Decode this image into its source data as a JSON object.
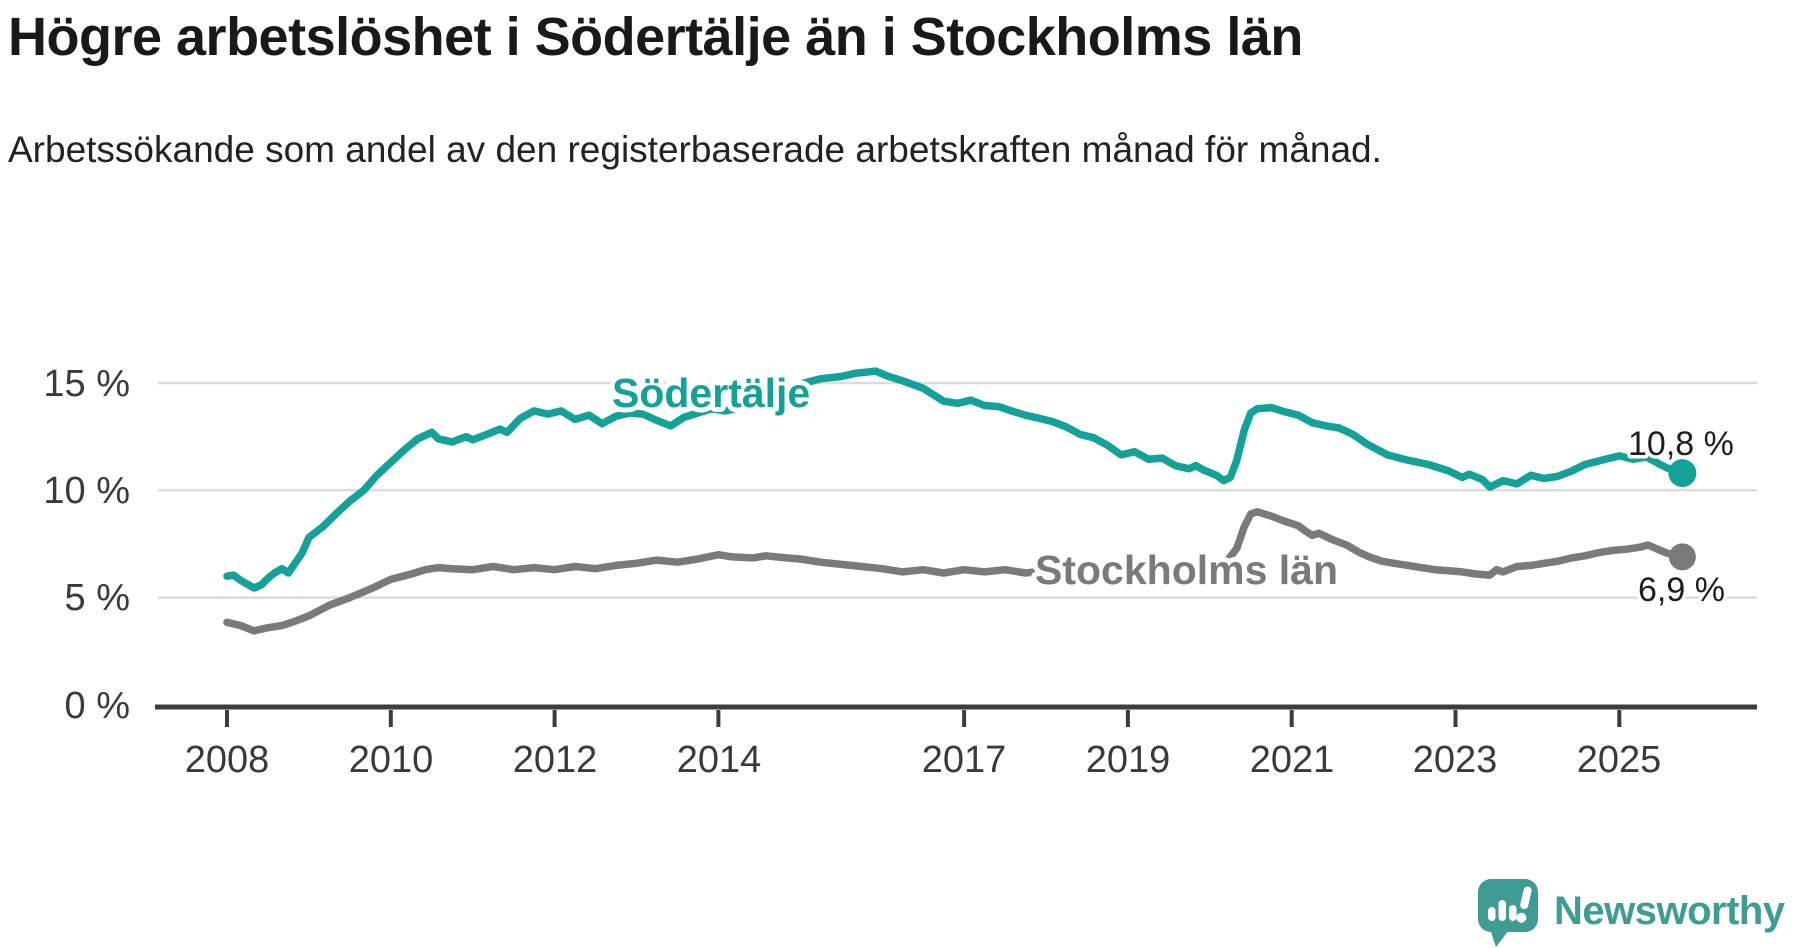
{
  "title": "Högre arbetslöshet i Södertälje än i Stockholms län",
  "subtitle": "Arbetssökande som andel av den registerbaserade arbetskraften månad för månad.",
  "branding": {
    "logo_text": "Newsworthy",
    "logo_color": "#3E9C94"
  },
  "colors": {
    "soedertaelje": "#14A197",
    "stockholms_laen": "#7A7A7A",
    "gridline": "#DCDCDC",
    "axis": "#3C3C3C",
    "text": "#3A3A3A"
  },
  "chart_data": {
    "type": "line",
    "title": "Högre arbetslöshet i Södertälje än i Stockholms län",
    "subtitle": "Arbetssökande som andel av den registerbaserade arbetskraften månad för månad.",
    "unit": "percent of registered labour force, monthly",
    "grid": "horizontal",
    "legend": "inline-labels",
    "x_axis": {
      "range": [
        2007.6,
        2026.0
      ],
      "ticks": [
        2008,
        2010,
        2012,
        2014,
        2017,
        2019,
        2021,
        2023,
        2025
      ],
      "tick_labels": [
        "2008",
        "2010",
        "2012",
        "2014",
        "2017",
        "2019",
        "2021",
        "2023",
        "2025"
      ]
    },
    "y_axis": {
      "range": [
        0,
        16.5
      ],
      "ticks": [
        15,
        10,
        5,
        0
      ],
      "labels": [
        "15 %",
        "10 %",
        "5 %",
        "0 %"
      ]
    },
    "series": [
      {
        "name": "Södertälje",
        "color": "#14A197",
        "end_value": 10.8,
        "end_label": "10,8 %",
        "points": [
          [
            2008.0,
            6.0
          ],
          [
            2008.08,
            6.05
          ],
          [
            2008.17,
            5.8
          ],
          [
            2008.33,
            5.45
          ],
          [
            2008.42,
            5.6
          ],
          [
            2008.5,
            5.9
          ],
          [
            2008.58,
            6.15
          ],
          [
            2008.67,
            6.35
          ],
          [
            2008.75,
            6.15
          ],
          [
            2008.83,
            6.6
          ],
          [
            2008.92,
            7.1
          ],
          [
            2009.0,
            7.8
          ],
          [
            2009.17,
            8.3
          ],
          [
            2009.33,
            8.9
          ],
          [
            2009.5,
            9.5
          ],
          [
            2009.67,
            10.0
          ],
          [
            2009.83,
            10.7
          ],
          [
            2010.0,
            11.3
          ],
          [
            2010.17,
            11.9
          ],
          [
            2010.33,
            12.4
          ],
          [
            2010.5,
            12.7
          ],
          [
            2010.58,
            12.4
          ],
          [
            2010.75,
            12.25
          ],
          [
            2010.92,
            12.5
          ],
          [
            2011.0,
            12.35
          ],
          [
            2011.17,
            12.6
          ],
          [
            2011.33,
            12.85
          ],
          [
            2011.42,
            12.7
          ],
          [
            2011.58,
            13.35
          ],
          [
            2011.75,
            13.7
          ],
          [
            2011.92,
            13.55
          ],
          [
            2012.08,
            13.7
          ],
          [
            2012.25,
            13.3
          ],
          [
            2012.42,
            13.5
          ],
          [
            2012.58,
            13.1
          ],
          [
            2012.75,
            13.45
          ],
          [
            2012.92,
            13.6
          ],
          [
            2013.08,
            13.55
          ],
          [
            2013.25,
            13.25
          ],
          [
            2013.42,
            13.0
          ],
          [
            2013.58,
            13.4
          ],
          [
            2013.75,
            13.6
          ],
          [
            2013.92,
            13.8
          ],
          [
            2014.08,
            13.7
          ],
          [
            2014.33,
            13.9
          ],
          [
            2014.58,
            14.15
          ],
          [
            2014.83,
            14.55
          ],
          [
            2015.0,
            14.95
          ],
          [
            2015.25,
            15.2
          ],
          [
            2015.5,
            15.3
          ],
          [
            2015.67,
            15.45
          ],
          [
            2015.92,
            15.55
          ],
          [
            2016.08,
            15.3
          ],
          [
            2016.25,
            15.1
          ],
          [
            2016.5,
            14.75
          ],
          [
            2016.75,
            14.15
          ],
          [
            2016.92,
            14.05
          ],
          [
            2017.08,
            14.2
          ],
          [
            2017.25,
            13.95
          ],
          [
            2017.42,
            13.9
          ],
          [
            2017.58,
            13.7
          ],
          [
            2017.75,
            13.5
          ],
          [
            2017.92,
            13.35
          ],
          [
            2018.08,
            13.2
          ],
          [
            2018.25,
            12.95
          ],
          [
            2018.42,
            12.6
          ],
          [
            2018.58,
            12.45
          ],
          [
            2018.75,
            12.1
          ],
          [
            2018.92,
            11.65
          ],
          [
            2019.08,
            11.8
          ],
          [
            2019.25,
            11.45
          ],
          [
            2019.42,
            11.5
          ],
          [
            2019.58,
            11.15
          ],
          [
            2019.75,
            11.0
          ],
          [
            2019.83,
            11.15
          ],
          [
            2019.92,
            10.95
          ],
          [
            2020.08,
            10.7
          ],
          [
            2020.17,
            10.45
          ],
          [
            2020.25,
            10.6
          ],
          [
            2020.33,
            11.4
          ],
          [
            2020.42,
            12.8
          ],
          [
            2020.5,
            13.6
          ],
          [
            2020.58,
            13.8
          ],
          [
            2020.75,
            13.85
          ],
          [
            2020.92,
            13.65
          ],
          [
            2021.08,
            13.5
          ],
          [
            2021.25,
            13.15
          ],
          [
            2021.42,
            13.0
          ],
          [
            2021.58,
            12.9
          ],
          [
            2021.75,
            12.6
          ],
          [
            2021.92,
            12.15
          ],
          [
            2022.17,
            11.65
          ],
          [
            2022.42,
            11.4
          ],
          [
            2022.67,
            11.2
          ],
          [
            2022.92,
            10.9
          ],
          [
            2023.08,
            10.6
          ],
          [
            2023.17,
            10.75
          ],
          [
            2023.33,
            10.5
          ],
          [
            2023.42,
            10.15
          ],
          [
            2023.58,
            10.45
          ],
          [
            2023.75,
            10.3
          ],
          [
            2023.92,
            10.7
          ],
          [
            2024.08,
            10.55
          ],
          [
            2024.25,
            10.65
          ],
          [
            2024.42,
            10.9
          ],
          [
            2024.58,
            11.2
          ],
          [
            2024.83,
            11.45
          ],
          [
            2025.0,
            11.6
          ],
          [
            2025.17,
            11.45
          ],
          [
            2025.33,
            11.55
          ],
          [
            2025.5,
            11.2
          ],
          [
            2025.58,
            11.05
          ],
          [
            2025.77,
            10.8
          ]
        ]
      },
      {
        "name": "Stockholms län",
        "color": "#7A7A7A",
        "end_value": 6.9,
        "end_label": "6,9 %",
        "points": [
          [
            2008.0,
            3.85
          ],
          [
            2008.17,
            3.7
          ],
          [
            2008.33,
            3.45
          ],
          [
            2008.5,
            3.6
          ],
          [
            2008.67,
            3.7
          ],
          [
            2008.83,
            3.9
          ],
          [
            2009.0,
            4.15
          ],
          [
            2009.25,
            4.65
          ],
          [
            2009.5,
            5.0
          ],
          [
            2009.75,
            5.4
          ],
          [
            2010.0,
            5.85
          ],
          [
            2010.25,
            6.1
          ],
          [
            2010.42,
            6.3
          ],
          [
            2010.58,
            6.4
          ],
          [
            2010.75,
            6.35
          ],
          [
            2011.0,
            6.3
          ],
          [
            2011.25,
            6.45
          ],
          [
            2011.5,
            6.3
          ],
          [
            2011.75,
            6.4
          ],
          [
            2012.0,
            6.3
          ],
          [
            2012.25,
            6.45
          ],
          [
            2012.5,
            6.35
          ],
          [
            2012.75,
            6.5
          ],
          [
            2013.0,
            6.6
          ],
          [
            2013.25,
            6.75
          ],
          [
            2013.5,
            6.65
          ],
          [
            2013.75,
            6.8
          ],
          [
            2014.0,
            7.0
          ],
          [
            2014.17,
            6.9
          ],
          [
            2014.42,
            6.85
          ],
          [
            2014.58,
            6.95
          ],
          [
            2014.83,
            6.85
          ],
          [
            2015.0,
            6.8
          ],
          [
            2015.25,
            6.65
          ],
          [
            2015.5,
            6.55
          ],
          [
            2015.75,
            6.45
          ],
          [
            2016.0,
            6.35
          ],
          [
            2016.25,
            6.2
          ],
          [
            2016.5,
            6.3
          ],
          [
            2016.75,
            6.15
          ],
          [
            2017.0,
            6.3
          ],
          [
            2017.25,
            6.2
          ],
          [
            2017.5,
            6.3
          ],
          [
            2017.75,
            6.15
          ],
          [
            2018.0,
            6.25
          ],
          [
            2018.25,
            6.1
          ],
          [
            2018.5,
            6.2
          ],
          [
            2018.75,
            6.15
          ],
          [
            2019.0,
            6.25
          ],
          [
            2019.25,
            6.15
          ],
          [
            2019.5,
            6.25
          ],
          [
            2019.75,
            6.3
          ],
          [
            2020.0,
            6.35
          ],
          [
            2020.17,
            6.5
          ],
          [
            2020.33,
            7.3
          ],
          [
            2020.42,
            8.3
          ],
          [
            2020.5,
            8.9
          ],
          [
            2020.58,
            9.0
          ],
          [
            2020.75,
            8.8
          ],
          [
            2020.92,
            8.55
          ],
          [
            2021.08,
            8.35
          ],
          [
            2021.17,
            8.1
          ],
          [
            2021.25,
            7.9
          ],
          [
            2021.33,
            8.0
          ],
          [
            2021.5,
            7.7
          ],
          [
            2021.67,
            7.45
          ],
          [
            2021.83,
            7.1
          ],
          [
            2021.95,
            6.9
          ],
          [
            2022.1,
            6.7
          ],
          [
            2022.25,
            6.6
          ],
          [
            2022.42,
            6.5
          ],
          [
            2022.58,
            6.4
          ],
          [
            2022.75,
            6.3
          ],
          [
            2022.92,
            6.25
          ],
          [
            2023.08,
            6.2
          ],
          [
            2023.25,
            6.1
          ],
          [
            2023.42,
            6.05
          ],
          [
            2023.5,
            6.3
          ],
          [
            2023.58,
            6.2
          ],
          [
            2023.75,
            6.45
          ],
          [
            2023.92,
            6.5
          ],
          [
            2024.08,
            6.6
          ],
          [
            2024.25,
            6.7
          ],
          [
            2024.42,
            6.85
          ],
          [
            2024.58,
            6.95
          ],
          [
            2024.75,
            7.1
          ],
          [
            2024.92,
            7.2
          ],
          [
            2025.08,
            7.25
          ],
          [
            2025.25,
            7.35
          ],
          [
            2025.35,
            7.45
          ],
          [
            2025.5,
            7.2
          ],
          [
            2025.6,
            7.05
          ],
          [
            2025.77,
            6.9
          ]
        ]
      }
    ]
  }
}
